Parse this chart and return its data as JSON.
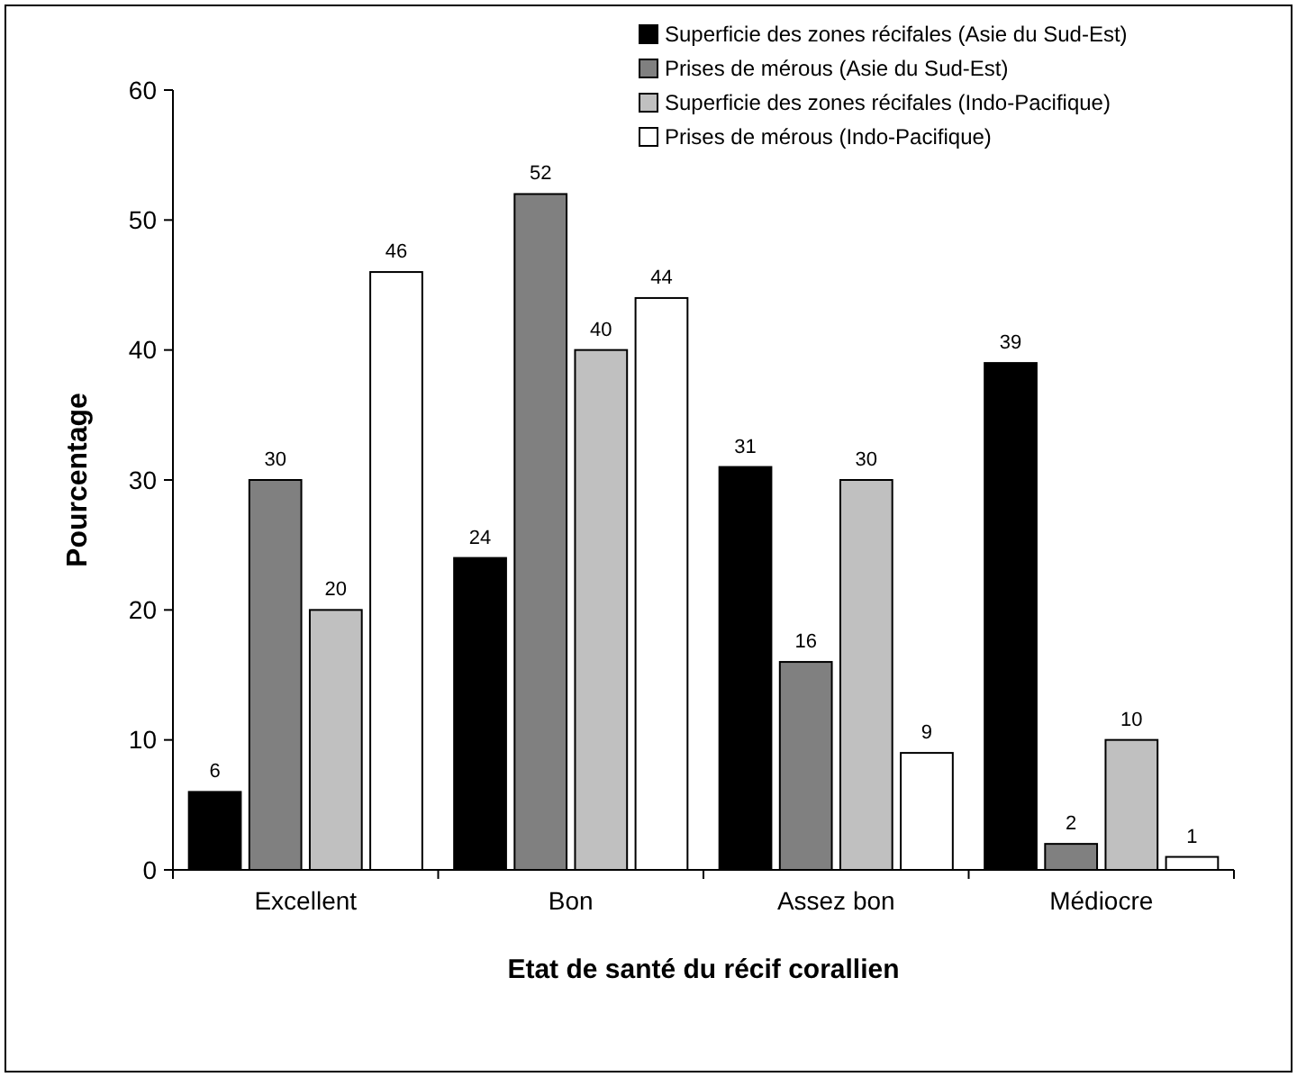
{
  "chart_data": {
    "type": "bar",
    "xlabel": "Etat de santé du récif corallien",
    "ylabel": "Pourcentage",
    "categories": [
      "Excellent",
      "Bon",
      "Assez bon",
      "Médiocre"
    ],
    "series": [
      {
        "name": "Superficie des zones récifales (Asie du Sud-Est)",
        "color": "#000000",
        "values": [
          6,
          24,
          31,
          39
        ]
      },
      {
        "name": "Prises de mérous (Asie du Sud-Est)",
        "color": "#808080",
        "values": [
          30,
          52,
          16,
          2
        ]
      },
      {
        "name": "Superficie des zones récifales (Indo-Pacifique)",
        "color": "#c0c0c0",
        "values": [
          20,
          40,
          30,
          10
        ]
      },
      {
        "name": "Prises de mérous (Indo-Pacifique)",
        "color": "#ffffff",
        "values": [
          46,
          44,
          9,
          1
        ]
      }
    ],
    "ylim": [
      0,
      60
    ],
    "yticks": [
      0,
      10,
      20,
      30,
      40,
      50,
      60
    ],
    "data_labels": true,
    "legend": "top right",
    "grid": false
  }
}
